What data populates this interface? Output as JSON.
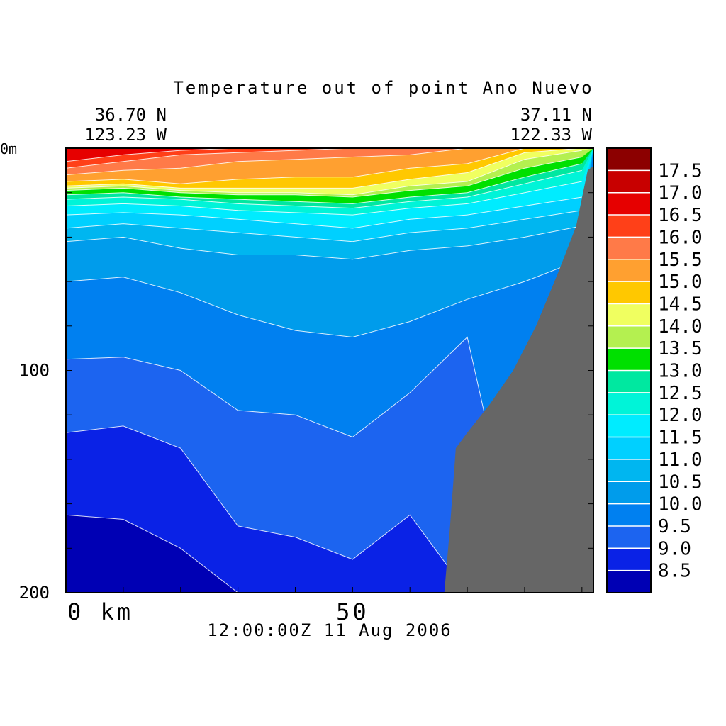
{
  "chart_data": {
    "type": "heatmap",
    "title": "Temperature out of point Ano Nuevo",
    "start_position": {
      "lat": "36.70 N",
      "lon": "123.23 W"
    },
    "end_position": {
      "lat": "37.11 N",
      "lon": "122.33 W"
    },
    "timestamp": "12:00:00Z  11 Aug 2006",
    "x_axis": {
      "unit_label": "km",
      "range": [
        0,
        92
      ],
      "tick_labels": [
        {
          "label": "0",
          "value": 0
        },
        {
          "label": "50",
          "value": 50
        }
      ],
      "minor_ticks": [
        0,
        10,
        20,
        30,
        40,
        50,
        60,
        70,
        80,
        90
      ]
    },
    "y_axis": {
      "unit_label": "m",
      "range": [
        0,
        200
      ],
      "inverted": true,
      "tick_labels": [
        {
          "label": "0",
          "value": 0
        },
        {
          "label": "100",
          "value": 100
        },
        {
          "label": "200",
          "value": 200
        }
      ],
      "minor_ticks": [
        0,
        20,
        40,
        60,
        80,
        100,
        120,
        140,
        160,
        180,
        200
      ]
    },
    "levels": [
      8.0,
      8.5,
      9.0,
      9.5,
      10.0,
      10.5,
      11.0,
      11.5,
      12.0,
      12.5,
      13.0,
      13.5,
      14.0,
      14.5,
      15.0,
      15.5,
      16.0,
      16.5,
      17.0,
      17.5,
      18.0
    ],
    "colors": [
      "#0000b4",
      "#0a22e6",
      "#1c64f0",
      "#0080f0",
      "#009ceb",
      "#00b6f0",
      "#00d0ff",
      "#00ecff",
      "#00f4d8",
      "#00e8a0",
      "#00e000",
      "#b4f050",
      "#f0ff60",
      "#ffc800",
      "#ffa030",
      "#ff7a48",
      "#ff4018",
      "#e60000",
      "#c80000",
      "#8c0000"
    ],
    "colorbar_labels": [
      "17.5",
      "17.0",
      "16.5",
      "16.0",
      "15.5",
      "15.0",
      "14.5",
      "14.0",
      "13.5",
      "13.0",
      "12.5",
      "12.0",
      "11.5",
      "11.0",
      "10.5",
      "10.0",
      "9.5",
      "9.0",
      "8.5"
    ],
    "land_color": "#666666",
    "isotherm_depths": {
      "x_km": [
        0,
        10,
        20,
        30,
        40,
        50,
        60,
        70,
        80,
        90
      ],
      "8.5": [
        165,
        167,
        180,
        200,
        200,
        200,
        200,
        200,
        200,
        200
      ],
      "9.0": [
        128,
        125,
        135,
        170,
        175,
        185,
        165,
        200,
        200,
        200
      ],
      "9.5": [
        95,
        94,
        100,
        118,
        120,
        130,
        110,
        85,
        200,
        200
      ],
      "10.0": [
        60,
        58,
        65,
        75,
        82,
        85,
        78,
        68,
        60,
        50
      ],
      "10.5": [
        42,
        40,
        45,
        48,
        48,
        50,
        46,
        44,
        40,
        35
      ],
      "11.0": [
        36,
        34,
        36,
        38,
        40,
        42,
        38,
        36,
        32,
        28
      ],
      "11.5": [
        30,
        29,
        30,
        32,
        34,
        36,
        32,
        30,
        26,
        22
      ],
      "12.0": [
        26,
        25,
        26,
        28,
        29,
        30,
        27,
        25,
        20,
        15
      ],
      "12.5": [
        23,
        22,
        23,
        25,
        26,
        27,
        24,
        22,
        16,
        10
      ],
      "13.0": [
        21,
        20,
        22,
        23,
        24,
        25,
        22,
        20,
        13,
        7
      ],
      "13.5": [
        19,
        18,
        20,
        21,
        21,
        22,
        19,
        17,
        9,
        4
      ],
      "14.0": [
        18,
        17,
        19,
        20,
        20,
        21,
        17,
        15,
        5,
        1
      ],
      "14.5": [
        17,
        16,
        18,
        18,
        18,
        18,
        14,
        11,
        2,
        0
      ],
      "15.0": [
        15,
        14,
        16,
        14,
        13,
        13,
        9,
        7,
        0,
        0
      ],
      "15.5": [
        12,
        10,
        9,
        6,
        5,
        4,
        3,
        0,
        0,
        0
      ],
      "16.0": [
        9,
        6,
        3,
        2,
        1,
        0,
        0,
        0,
        0,
        0
      ],
      "16.5": [
        6,
        3,
        1,
        0,
        0,
        0,
        0,
        0,
        0,
        0
      ]
    },
    "bathymetry": {
      "x_km": [
        66,
        67,
        68,
        70,
        74,
        78,
        82,
        86,
        89,
        91,
        92
      ],
      "depth_m": [
        200,
        170,
        135,
        128,
        115,
        100,
        80,
        55,
        35,
        10,
        8
      ]
    },
    "grid": false
  }
}
